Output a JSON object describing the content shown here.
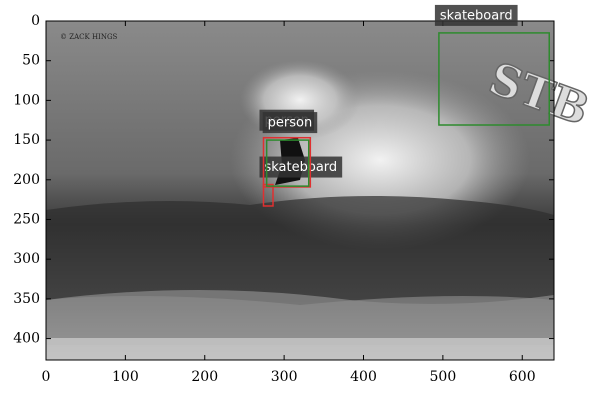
{
  "chart_data": {
    "type": "image-detections",
    "xlim": [
      0,
      640
    ],
    "ylim": [
      0,
      427
    ],
    "xticks": [
      0,
      100,
      200,
      300,
      400,
      500,
      600
    ],
    "yticks": [
      0,
      50,
      100,
      150,
      200,
      250,
      300,
      350,
      400
    ],
    "watermark": "© ZACK HINGS",
    "logo": "STB",
    "boxes": [
      {
        "label": "skateboard",
        "color": "#e03030",
        "x": [
          274,
          286
        ],
        "y": [
          206,
          233
        ]
      },
      {
        "label": "person",
        "color": "#e03030",
        "x": [
          274,
          333
        ],
        "y": [
          147,
          209
        ]
      },
      {
        "label": "skateboard",
        "color": "#2e8b2e",
        "x": [
          495,
          634
        ],
        "y": [
          15,
          131
        ]
      },
      {
        "label": "person",
        "color": "#2e8b2e",
        "x": [
          278,
          331
        ],
        "y": [
          150,
          208
        ]
      }
    ]
  }
}
